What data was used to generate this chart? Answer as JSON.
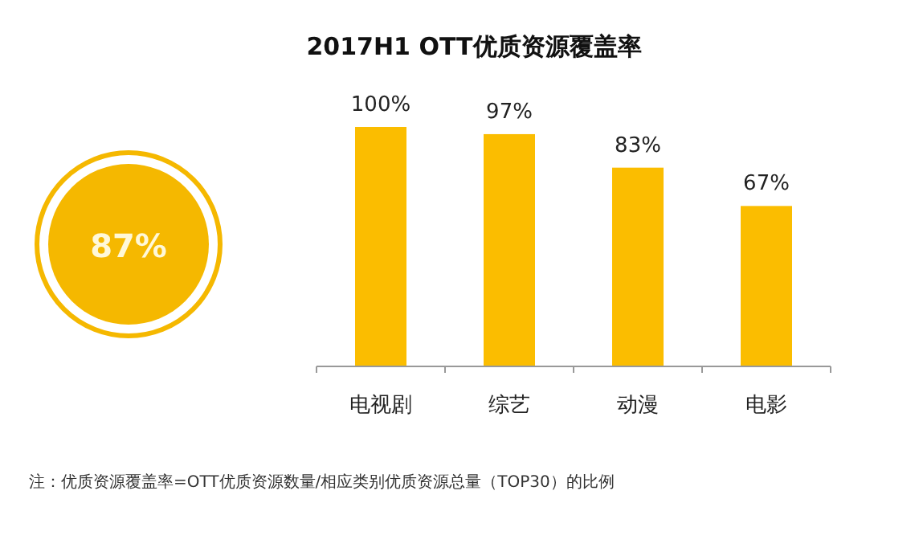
{
  "chart_data": [
    {
      "type": "other",
      "annotations": [
        "87%"
      ],
      "color": "#f5b800"
    },
    {
      "type": "bar",
      "title": "2017H1 OTT优质资源覆盖率",
      "categories": [
        "电视剧",
        "综艺",
        "动漫",
        "电影"
      ],
      "values": [
        100,
        97,
        83,
        67
      ],
      "value_labels": [
        "100%",
        "97%",
        "83%",
        "67%"
      ],
      "color": "#fbbd00",
      "annotations": [
        "注：优质资源覆盖率=OTT优质资源数量/相应类别优质资源总量（TOP30）的比例"
      ]
    }
  ]
}
